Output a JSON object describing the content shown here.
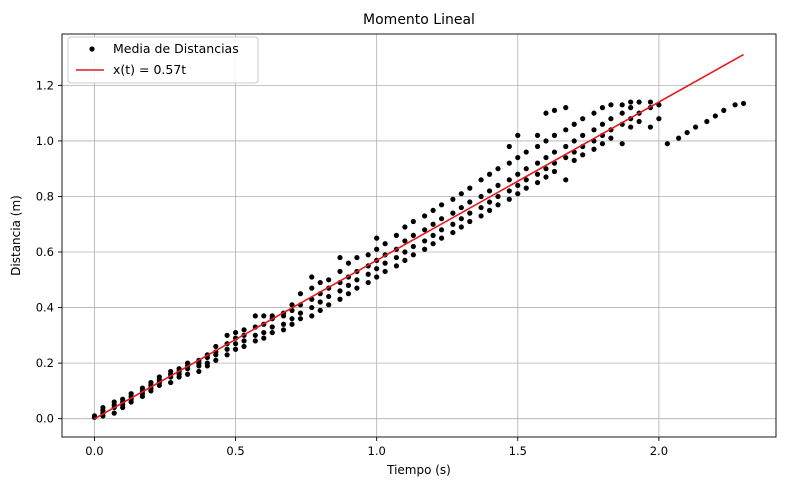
{
  "chart_data": {
    "type": "scatter",
    "title": "Momento Lineal",
    "xlabel": "Tiempo (s)",
    "ylabel": "Distancia (m)",
    "xlim": [
      -0.115,
      2.415
    ],
    "ylim": [
      -0.066,
      1.385
    ],
    "xticks": [
      0.0,
      0.5,
      1.0,
      1.5,
      2.0
    ],
    "xtick_labels": [
      "0.0",
      "0.5",
      "1.0",
      "1.5",
      "2.0"
    ],
    "yticks": [
      0.0,
      0.2,
      0.4,
      0.6,
      0.8,
      1.0,
      1.2
    ],
    "ytick_labels": [
      "0.0",
      "0.2",
      "0.4",
      "0.6",
      "0.8",
      "1.0",
      "1.2"
    ],
    "grid": true,
    "legend_position": "upper-left",
    "series": [
      {
        "name": "Media de Distancias",
        "kind": "scatter",
        "color": "#000000",
        "points": [
          [
            0.0,
            0.005
          ],
          [
            0.0,
            0.01
          ],
          [
            0.03,
            0.01
          ],
          [
            0.03,
            0.02
          ],
          [
            0.03,
            0.03
          ],
          [
            0.03,
            0.04
          ],
          [
            0.07,
            0.02
          ],
          [
            0.07,
            0.04
          ],
          [
            0.07,
            0.05
          ],
          [
            0.07,
            0.06
          ],
          [
            0.1,
            0.04
          ],
          [
            0.1,
            0.05
          ],
          [
            0.1,
            0.06
          ],
          [
            0.1,
            0.07
          ],
          [
            0.13,
            0.06
          ],
          [
            0.13,
            0.07
          ],
          [
            0.13,
            0.08
          ],
          [
            0.13,
            0.09
          ],
          [
            0.17,
            0.08
          ],
          [
            0.17,
            0.09
          ],
          [
            0.17,
            0.1
          ],
          [
            0.17,
            0.11
          ],
          [
            0.2,
            0.1
          ],
          [
            0.2,
            0.11
          ],
          [
            0.2,
            0.12
          ],
          [
            0.2,
            0.13
          ],
          [
            0.23,
            0.12
          ],
          [
            0.23,
            0.13
          ],
          [
            0.23,
            0.14
          ],
          [
            0.23,
            0.15
          ],
          [
            0.27,
            0.13
          ],
          [
            0.27,
            0.15
          ],
          [
            0.27,
            0.16
          ],
          [
            0.27,
            0.17
          ],
          [
            0.3,
            0.15
          ],
          [
            0.3,
            0.16
          ],
          [
            0.3,
            0.17
          ],
          [
            0.3,
            0.18
          ],
          [
            0.33,
            0.16
          ],
          [
            0.33,
            0.18
          ],
          [
            0.33,
            0.19
          ],
          [
            0.33,
            0.2
          ],
          [
            0.37,
            0.17
          ],
          [
            0.37,
            0.19
          ],
          [
            0.37,
            0.2
          ],
          [
            0.37,
            0.21
          ],
          [
            0.4,
            0.19
          ],
          [
            0.4,
            0.2
          ],
          [
            0.4,
            0.22
          ],
          [
            0.4,
            0.23
          ],
          [
            0.43,
            0.21
          ],
          [
            0.43,
            0.23
          ],
          [
            0.43,
            0.24
          ],
          [
            0.43,
            0.26
          ],
          [
            0.47,
            0.23
          ],
          [
            0.47,
            0.25
          ],
          [
            0.47,
            0.27
          ],
          [
            0.47,
            0.3
          ],
          [
            0.5,
            0.25
          ],
          [
            0.5,
            0.27
          ],
          [
            0.5,
            0.29
          ],
          [
            0.5,
            0.31
          ],
          [
            0.53,
            0.26
          ],
          [
            0.53,
            0.28
          ],
          [
            0.53,
            0.3
          ],
          [
            0.53,
            0.32
          ],
          [
            0.57,
            0.28
          ],
          [
            0.57,
            0.3
          ],
          [
            0.57,
            0.33
          ],
          [
            0.57,
            0.37
          ],
          [
            0.6,
            0.29
          ],
          [
            0.6,
            0.31
          ],
          [
            0.6,
            0.34
          ],
          [
            0.6,
            0.37
          ],
          [
            0.63,
            0.31
          ],
          [
            0.63,
            0.33
          ],
          [
            0.63,
            0.36
          ],
          [
            0.63,
            0.37
          ],
          [
            0.67,
            0.32
          ],
          [
            0.67,
            0.34
          ],
          [
            0.67,
            0.37
          ],
          [
            0.67,
            0.38
          ],
          [
            0.7,
            0.34
          ],
          [
            0.7,
            0.36
          ],
          [
            0.7,
            0.39
          ],
          [
            0.7,
            0.41
          ],
          [
            0.73,
            0.36
          ],
          [
            0.73,
            0.38
          ],
          [
            0.73,
            0.41
          ],
          [
            0.73,
            0.45
          ],
          [
            0.77,
            0.37
          ],
          [
            0.77,
            0.4
          ],
          [
            0.77,
            0.43
          ],
          [
            0.77,
            0.47
          ],
          [
            0.77,
            0.51
          ],
          [
            0.8,
            0.39
          ],
          [
            0.8,
            0.42
          ],
          [
            0.8,
            0.45
          ],
          [
            0.8,
            0.49
          ],
          [
            0.83,
            0.41
          ],
          [
            0.83,
            0.44
          ],
          [
            0.83,
            0.47
          ],
          [
            0.83,
            0.5
          ],
          [
            0.87,
            0.43
          ],
          [
            0.87,
            0.46
          ],
          [
            0.87,
            0.49
          ],
          [
            0.87,
            0.53
          ],
          [
            0.87,
            0.58
          ],
          [
            0.9,
            0.45
          ],
          [
            0.9,
            0.48
          ],
          [
            0.9,
            0.51
          ],
          [
            0.9,
            0.56
          ],
          [
            0.93,
            0.47
          ],
          [
            0.93,
            0.5
          ],
          [
            0.93,
            0.53
          ],
          [
            0.93,
            0.58
          ],
          [
            0.97,
            0.49
          ],
          [
            0.97,
            0.52
          ],
          [
            0.97,
            0.55
          ],
          [
            0.97,
            0.59
          ],
          [
            1.0,
            0.51
          ],
          [
            1.0,
            0.54
          ],
          [
            1.0,
            0.57
          ],
          [
            1.0,
            0.61
          ],
          [
            1.0,
            0.65
          ],
          [
            1.03,
            0.53
          ],
          [
            1.03,
            0.56
          ],
          [
            1.03,
            0.59
          ],
          [
            1.03,
            0.63
          ],
          [
            1.07,
            0.55
          ],
          [
            1.07,
            0.58
          ],
          [
            1.07,
            0.61
          ],
          [
            1.07,
            0.66
          ],
          [
            1.1,
            0.57
          ],
          [
            1.1,
            0.6
          ],
          [
            1.1,
            0.64
          ],
          [
            1.1,
            0.69
          ],
          [
            1.13,
            0.59
          ],
          [
            1.13,
            0.62
          ],
          [
            1.13,
            0.66
          ],
          [
            1.13,
            0.71
          ],
          [
            1.17,
            0.61
          ],
          [
            1.17,
            0.64
          ],
          [
            1.17,
            0.68
          ],
          [
            1.17,
            0.73
          ],
          [
            1.2,
            0.63
          ],
          [
            1.2,
            0.66
          ],
          [
            1.2,
            0.7
          ],
          [
            1.2,
            0.75
          ],
          [
            1.23,
            0.65
          ],
          [
            1.23,
            0.68
          ],
          [
            1.23,
            0.72
          ],
          [
            1.23,
            0.77
          ],
          [
            1.27,
            0.67
          ],
          [
            1.27,
            0.7
          ],
          [
            1.27,
            0.74
          ],
          [
            1.27,
            0.79
          ],
          [
            1.3,
            0.69
          ],
          [
            1.3,
            0.72
          ],
          [
            1.3,
            0.76
          ],
          [
            1.3,
            0.81
          ],
          [
            1.33,
            0.71
          ],
          [
            1.33,
            0.74
          ],
          [
            1.33,
            0.78
          ],
          [
            1.33,
            0.83
          ],
          [
            1.37,
            0.73
          ],
          [
            1.37,
            0.76
          ],
          [
            1.37,
            0.8
          ],
          [
            1.37,
            0.86
          ],
          [
            1.4,
            0.75
          ],
          [
            1.4,
            0.78
          ],
          [
            1.4,
            0.82
          ],
          [
            1.4,
            0.88
          ],
          [
            1.43,
            0.77
          ],
          [
            1.43,
            0.8
          ],
          [
            1.43,
            0.84
          ],
          [
            1.43,
            0.9
          ],
          [
            1.47,
            0.79
          ],
          [
            1.47,
            0.82
          ],
          [
            1.47,
            0.86
          ],
          [
            1.47,
            0.92
          ],
          [
            1.47,
            0.98
          ],
          [
            1.5,
            0.81
          ],
          [
            1.5,
            0.84
          ],
          [
            1.5,
            0.88
          ],
          [
            1.5,
            0.94
          ],
          [
            1.5,
            1.02
          ],
          [
            1.53,
            0.83
          ],
          [
            1.53,
            0.86
          ],
          [
            1.53,
            0.9
          ],
          [
            1.53,
            0.96
          ],
          [
            1.57,
            0.85
          ],
          [
            1.57,
            0.88
          ],
          [
            1.57,
            0.92
          ],
          [
            1.57,
            0.98
          ],
          [
            1.57,
            1.02
          ],
          [
            1.6,
            0.87
          ],
          [
            1.6,
            0.9
          ],
          [
            1.6,
            0.94
          ],
          [
            1.6,
            1.0
          ],
          [
            1.6,
            1.1
          ],
          [
            1.63,
            0.89
          ],
          [
            1.63,
            0.92
          ],
          [
            1.63,
            0.96
          ],
          [
            1.63,
            1.02
          ],
          [
            1.63,
            1.11
          ],
          [
            1.67,
            0.86
          ],
          [
            1.67,
            0.94
          ],
          [
            1.67,
            0.98
          ],
          [
            1.67,
            1.04
          ],
          [
            1.67,
            1.12
          ],
          [
            1.7,
            0.93
          ],
          [
            1.7,
            0.96
          ],
          [
            1.7,
            1.0
          ],
          [
            1.7,
            1.06
          ],
          [
            1.73,
            0.95
          ],
          [
            1.73,
            0.98
          ],
          [
            1.73,
            1.02
          ],
          [
            1.73,
            1.08
          ],
          [
            1.77,
            0.97
          ],
          [
            1.77,
            1.0
          ],
          [
            1.77,
            1.04
          ],
          [
            1.77,
            1.1
          ],
          [
            1.8,
            0.99
          ],
          [
            1.8,
            1.02
          ],
          [
            1.8,
            1.06
          ],
          [
            1.8,
            1.12
          ],
          [
            1.83,
            1.01
          ],
          [
            1.83,
            1.04
          ],
          [
            1.83,
            1.08
          ],
          [
            1.83,
            1.13
          ],
          [
            1.87,
            0.99
          ],
          [
            1.87,
            1.06
          ],
          [
            1.87,
            1.1
          ],
          [
            1.87,
            1.13
          ],
          [
            1.9,
            1.05
          ],
          [
            1.9,
            1.08
          ],
          [
            1.9,
            1.12
          ],
          [
            1.9,
            1.14
          ],
          [
            1.93,
            1.07
          ],
          [
            1.93,
            1.1
          ],
          [
            1.93,
            1.14
          ],
          [
            1.97,
            1.05
          ],
          [
            1.97,
            1.12
          ],
          [
            1.97,
            1.14
          ],
          [
            2.0,
            1.08
          ],
          [
            2.0,
            1.13
          ],
          [
            2.03,
            0.99
          ],
          [
            2.07,
            1.01
          ],
          [
            2.1,
            1.03
          ],
          [
            2.13,
            1.05
          ],
          [
            2.17,
            1.07
          ],
          [
            2.2,
            1.09
          ],
          [
            2.23,
            1.11
          ],
          [
            2.27,
            1.13
          ],
          [
            2.3,
            1.135
          ]
        ]
      },
      {
        "name": "x(t) = 0.57t",
        "kind": "line",
        "color": "#e31a1c",
        "x": [
          0.0,
          2.3
        ],
        "y": [
          0.0,
          1.311
        ]
      }
    ]
  }
}
